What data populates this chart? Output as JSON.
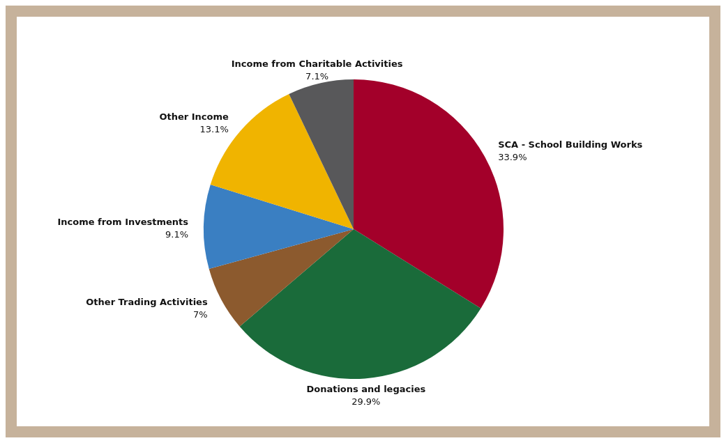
{
  "chart_data": {
    "type": "pie",
    "categories": [
      "SCA - School Building Works",
      "Donations and legacies",
      "Other Trading Activities",
      "Income from Investments",
      "Other Income",
      "Income from Charitable Activities"
    ],
    "values": [
      33.9,
      29.9,
      7,
      9.1,
      13.1,
      7.1
    ],
    "value_labels": [
      "33.9%",
      "29.9%",
      "7%",
      "9.1%",
      "13.1%",
      "7.1%"
    ],
    "colors": [
      "#a3002a",
      "#1a6b3a",
      "#8c5a2e",
      "#3a7fc2",
      "#f0b400",
      "#58585a"
    ],
    "legend": false
  }
}
